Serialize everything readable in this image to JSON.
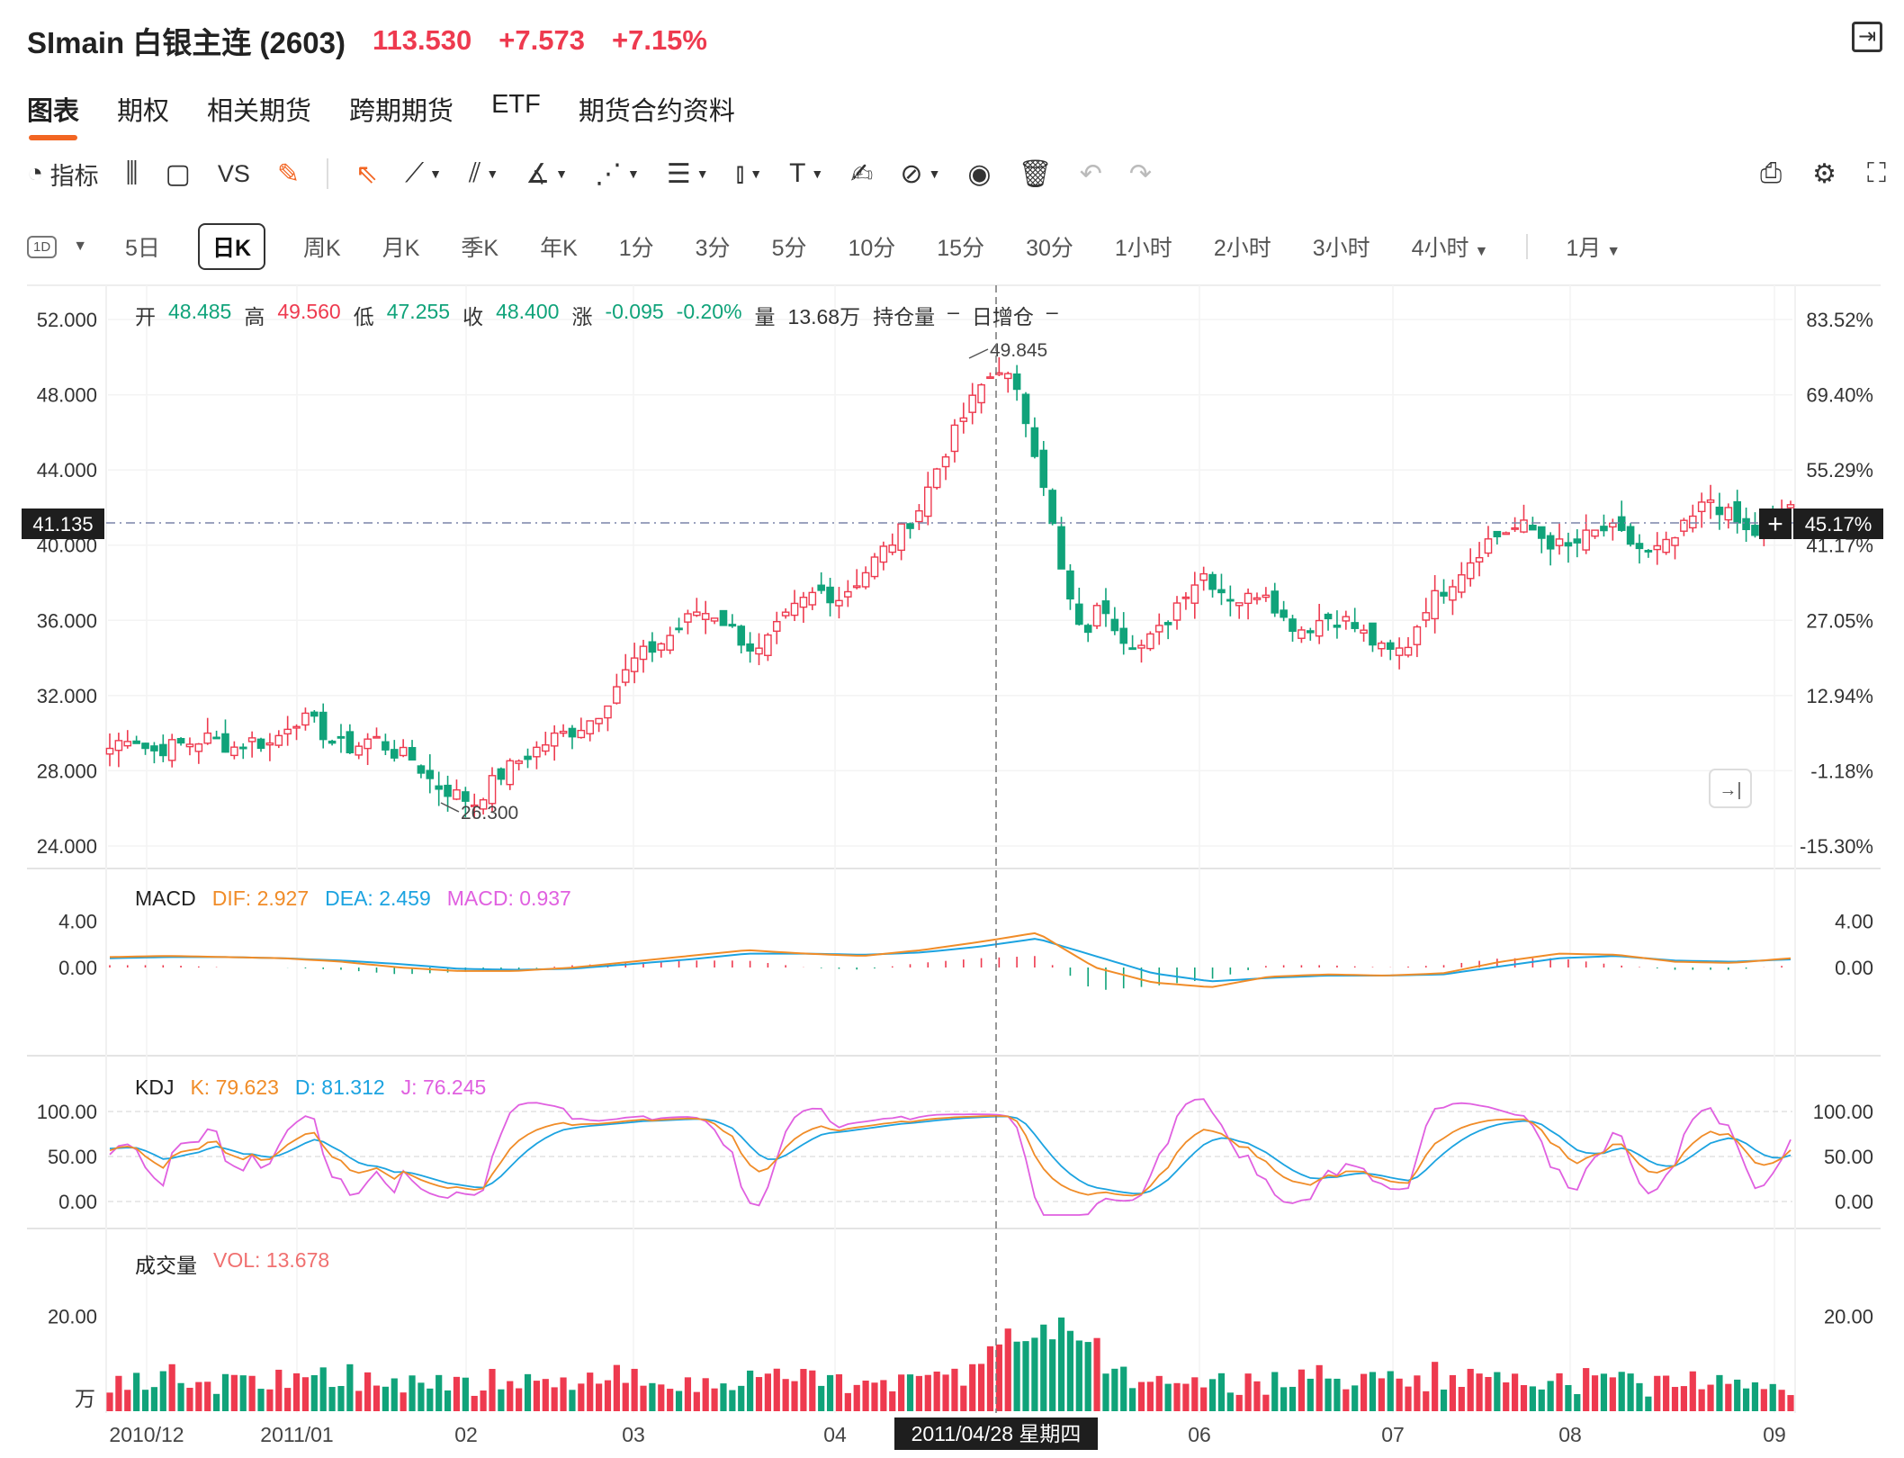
{
  "header": {
    "name": "SImain 白银主连 (2603)",
    "price": "113.530",
    "change": "+7.573",
    "change_pct": "+7.15%"
  },
  "tabs": [
    "图表",
    "期权",
    "相关期货",
    "跨期期货",
    "ETF",
    "期货合约资料"
  ],
  "toolbar": {
    "indicator_label": "指标",
    "vs_label": "VS"
  },
  "periods": [
    "5日",
    "日K",
    "周K",
    "月K",
    "季K",
    "年K",
    "1分",
    "3分",
    "5分",
    "10分",
    "15分",
    "30分",
    "1小时",
    "2小时",
    "3小时",
    "4小时",
    "1月"
  ],
  "period_box": "1D",
  "info": {
    "open_label": "开",
    "open": "48.485",
    "high_label": "高",
    "high": "49.560",
    "low_label": "低",
    "low": "47.255",
    "close_label": "收",
    "close": "48.400",
    "chg_label": "涨",
    "chg": "-0.095",
    "chg_pct": "-0.20%",
    "vol_label": "量",
    "vol": "13.68万",
    "oi_label": "持仓量",
    "oi": "–",
    "oi_day_label": "日增仓",
    "oi_day": "–"
  },
  "macd": {
    "name": "MACD",
    "dif": "DIF: 2.927",
    "dea": "DEA: 2.459",
    "macd": "MACD: 0.937"
  },
  "kdj": {
    "name": "KDJ",
    "k": "K: 79.623",
    "d": "D: 81.312",
    "j": "J: 76.245"
  },
  "volume": {
    "name": "成交量",
    "vol": "VOL: 13.678",
    "unit": "万"
  },
  "crosshair": {
    "price_tag": "41.135",
    "pct_tag": "45.17%",
    "date_tag": "2011/04/28 星期四"
  },
  "colors": {
    "up": "#ee3a4f",
    "down": "#10a37a",
    "dif": "#f08c28",
    "dea": "#1ca3e0",
    "j": "#e060e0"
  },
  "chart_data": [
    {
      "type": "candlestick",
      "title": "SImain 白银主连 (2603)",
      "y_ticks_left": [
        "52.000",
        "48.000",
        "44.000",
        "40.000",
        "36.000",
        "32.000",
        "28.000",
        "24.000"
      ],
      "y_ticks_right": [
        "83.52%",
        "69.40%",
        "55.29%",
        "41.17%",
        "27.05%",
        "12.94%",
        "-1.18%",
        "-15.30%"
      ],
      "ylim": [
        24,
        52
      ],
      "x_ticks": [
        "2010/12",
        "2011/01",
        "02",
        "03",
        "04",
        "06",
        "07",
        "08",
        "09"
      ],
      "annotations": [
        "49.845",
        "26.300"
      ],
      "close_path": [
        29.2,
        30.0,
        29.0,
        29.3,
        29.5,
        29.8,
        29.2,
        29.6,
        29.4,
        30.8,
        30.6,
        29.5,
        29.2,
        29.8,
        29.0,
        28.6,
        27.3,
        26.8,
        26.3,
        27.5,
        28.4,
        29.1,
        29.8,
        30.2,
        30.9,
        32.5,
        34.0,
        34.6,
        35.5,
        36.5,
        36.3,
        35.2,
        34.2,
        35.6,
        36.8,
        37.6,
        37.2,
        38.2,
        39.5,
        40.6,
        42.0,
        44.5,
        46.5,
        48.4,
        49.6,
        47.5,
        44.0,
        38.5,
        35.0,
        37.0,
        35.2,
        34.6,
        35.6,
        37.5,
        38.5,
        37.5,
        37.0,
        37.8,
        36.0,
        35.5,
        36.2,
        36.0,
        35.2,
        34.2,
        34.5,
        36.8,
        37.8,
        39.0,
        40.2,
        40.8,
        41.0,
        40.2,
        39.8,
        40.5,
        40.9,
        40.2,
        39.5,
        40.0,
        41.2,
        42.5,
        41.5,
        40.5,
        41.0,
        42.2
      ]
    },
    {
      "type": "line",
      "title": "MACD",
      "y_ticks": [
        "4.00",
        "0.00"
      ],
      "ylim": [
        -7,
        7
      ],
      "series": [
        {
          "name": "DIF",
          "values": [
            0.9,
            1.0,
            0.9,
            0.8,
            0.5,
            0.0,
            -0.3,
            -0.3,
            0.0,
            0.5,
            1.0,
            1.5,
            1.2,
            1.0,
            1.5,
            2.2,
            3.0,
            0.0,
            -1.3,
            -1.7,
            -0.8,
            -0.6,
            -0.7,
            -0.5,
            0.5,
            1.2,
            1.1,
            0.5,
            0.4,
            0.8
          ]
        },
        {
          "name": "DEA",
          "values": [
            0.8,
            0.9,
            0.9,
            0.8,
            0.6,
            0.3,
            -0.1,
            -0.2,
            -0.1,
            0.3,
            0.7,
            1.2,
            1.2,
            1.1,
            1.3,
            1.8,
            2.5,
            1.0,
            -0.5,
            -1.2,
            -0.9,
            -0.7,
            -0.7,
            -0.6,
            0.1,
            0.8,
            1.0,
            0.6,
            0.5,
            0.7
          ]
        }
      ]
    },
    {
      "type": "line",
      "title": "KDJ",
      "y_ticks": [
        "100.00",
        "50.00",
        "0.00"
      ],
      "ylim": [
        -20,
        125
      ]
    },
    {
      "type": "bar",
      "title": "成交量",
      "y_ticks": [
        "20.00"
      ],
      "ylim": [
        0,
        29
      ]
    }
  ]
}
